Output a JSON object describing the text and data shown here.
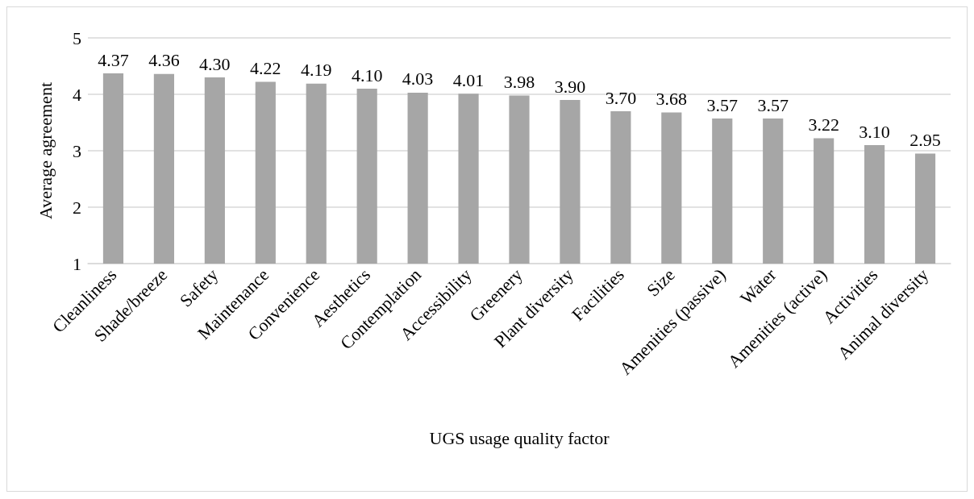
{
  "chart_data": {
    "type": "bar",
    "xlabel": "UGS usage quality factor",
    "ylabel": "Average agreement",
    "categories": [
      "Cleanliness",
      "Shade/breeze",
      "Safety",
      "Maintenance",
      "Convenience",
      "Aesthetics",
      "Contemplation",
      "Accessibility",
      "Greenery",
      "Plant diversity",
      "Facilities",
      "Size",
      "Amenities (passive)",
      "Water",
      "Amenities (active)",
      "Activities",
      "Animal diversity"
    ],
    "values": [
      4.37,
      4.36,
      4.3,
      4.22,
      4.19,
      4.1,
      4.03,
      4.01,
      3.98,
      3.9,
      3.7,
      3.68,
      3.57,
      3.57,
      3.22,
      3.1,
      2.95
    ],
    "value_labels": [
      "4.37",
      "4.36",
      "4.30",
      "4.22",
      "4.19",
      "4.10",
      "4.03",
      "4.01",
      "3.98",
      "3.90",
      "3.70",
      "3.68",
      "3.57",
      "3.57",
      "3.22",
      "3.10",
      "2.95"
    ],
    "color": "#a6a6a6",
    "ylim": [
      1,
      5
    ],
    "yticks": [
      1,
      2,
      3,
      4,
      5
    ],
    "grid": "y"
  }
}
